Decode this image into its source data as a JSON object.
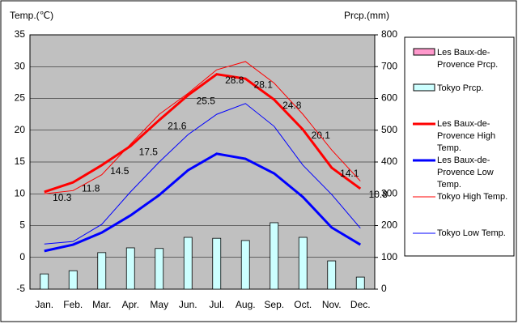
{
  "chart_data": {
    "type": "combo",
    "y_label": "Temp.(℃)",
    "y2_label": "Prcp.(mm)",
    "categories": [
      "Jan.",
      "Feb.",
      "Mar.",
      "Apr.",
      "May",
      "Jun.",
      "Jul.",
      "Aug.",
      "Sep.",
      "Oct.",
      "Nov.",
      "Dec."
    ],
    "ylim": [
      -5,
      35
    ],
    "yticks": [
      -5,
      0,
      5,
      10,
      15,
      20,
      25,
      30,
      35
    ],
    "y2lim": [
      0,
      800
    ],
    "y2ticks": [
      0,
      100,
      200,
      300,
      400,
      500,
      600,
      700,
      800
    ],
    "grid": true,
    "background": "#c0c0c0",
    "series": [
      {
        "name": "Les Baux-de-Provence Prcp.",
        "type": "bar",
        "axis": "y2",
        "color": "#ff99cc",
        "values": [
          null,
          null,
          null,
          null,
          null,
          null,
          null,
          null,
          null,
          null,
          null,
          null
        ]
      },
      {
        "name": "Tokyo Prcp.",
        "type": "bar",
        "axis": "y2",
        "color": "#ccffff",
        "values": [
          48,
          58,
          115,
          130,
          128,
          163,
          160,
          153,
          209,
          163,
          89,
          38
        ]
      },
      {
        "name": "Les Baux-de-Provence High Temp.",
        "type": "line",
        "color": "#ff0000",
        "line_width": 3,
        "show_labels": true,
        "values": [
          10.3,
          11.8,
          14.5,
          17.5,
          21.6,
          25.5,
          28.8,
          28.1,
          24.8,
          20.1,
          14.1,
          10.8
        ]
      },
      {
        "name": "Les Baux-de-Provence Low Temp.",
        "type": "line",
        "color": "#0000ff",
        "line_width": 3,
        "values": [
          1.0,
          2.0,
          3.9,
          6.6,
          9.8,
          13.7,
          16.3,
          15.5,
          13.2,
          9.5,
          4.7,
          2.0
        ]
      },
      {
        "name": "Tokyo High Temp.",
        "type": "line",
        "color": "#ff0000",
        "line_width": 1,
        "values": [
          10.0,
          10.5,
          13.0,
          17.8,
          22.5,
          25.8,
          29.5,
          30.8,
          27.4,
          22.5,
          16.9,
          12.0
        ]
      },
      {
        "name": "Tokyo Low Temp.",
        "type": "line",
        "color": "#0000ff",
        "line_width": 1,
        "values": [
          2.1,
          2.5,
          5.2,
          10.3,
          15.0,
          19.3,
          22.5,
          24.2,
          20.6,
          14.5,
          9.9,
          4.6
        ]
      }
    ]
  }
}
